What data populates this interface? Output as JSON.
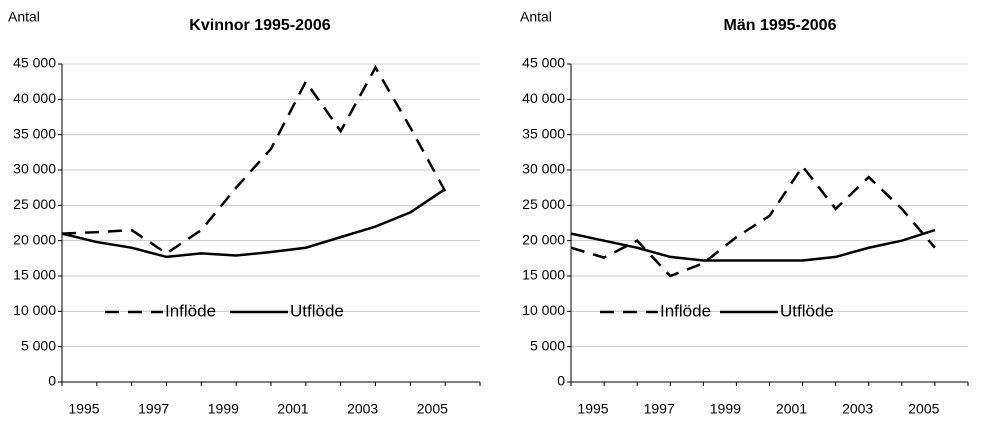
{
  "chart_data": [
    {
      "type": "line",
      "title": "Kvinnor 1995-2006",
      "y_label": "Antal",
      "categories": [
        "1995",
        null,
        "1997",
        null,
        "1999",
        null,
        "2001",
        null,
        "2003",
        null,
        "2005",
        null
      ],
      "series": [
        {
          "name": "Inflöde",
          "color": "#000000",
          "style": "dashed",
          "values": [
            21000,
            21200,
            21500,
            18200,
            21500,
            27500,
            33000,
            42500,
            35500,
            44500,
            36000,
            27000
          ]
        },
        {
          "name": "Utflöde",
          "color": "#000000",
          "style": "solid",
          "values": [
            21000,
            19800,
            19000,
            17700,
            18200,
            17900,
            18400,
            19000,
            20500,
            22000,
            24000,
            27300
          ]
        }
      ],
      "ylim": [
        0,
        45000
      ],
      "yticks": [
        0,
        {
          "value": 5000,
          "label": "5 000"
        },
        {
          "value": 10000,
          "label": "10 000"
        },
        {
          "value": 15000,
          "label": "15 000"
        },
        {
          "value": 20000,
          "label": "20 000"
        },
        {
          "value": 25000,
          "label": "25 000"
        },
        {
          "value": 30000,
          "label": "30 000"
        },
        {
          "value": 35000,
          "label": "35 000"
        },
        {
          "value": 40000,
          "label": "40 000"
        },
        {
          "value": 45000,
          "label": "45 000"
        }
      ],
      "grid": true
    },
    {
      "type": "line",
      "title": "Män 1995-2006",
      "y_label": "Antal",
      "categories": [
        "1995",
        null,
        "1997",
        null,
        "1999",
        null,
        "2001",
        null,
        "2003",
        null,
        "2005",
        null
      ],
      "series": [
        {
          "name": "Inflöde",
          "color": "#000000",
          "style": "dashed",
          "values": [
            19000,
            17600,
            20000,
            15000,
            16800,
            20500,
            23500,
            30500,
            24500,
            29000,
            24500,
            19000
          ]
        },
        {
          "name": "Utflöde",
          "color": "#000000",
          "style": "solid",
          "values": [
            21000,
            20000,
            19000,
            17700,
            17200,
            17200,
            17200,
            17200,
            17700,
            19000,
            20000,
            21500
          ]
        }
      ],
      "ylim": [
        0,
        45000
      ],
      "yticks": [
        0,
        {
          "value": 5000,
          "label": "5 000"
        },
        {
          "value": 10000,
          "label": "10 000"
        },
        {
          "value": 15000,
          "label": "15 000"
        },
        {
          "value": 20000,
          "label": "20 000"
        },
        {
          "value": 25000,
          "label": "25 000"
        },
        {
          "value": 30000,
          "label": "30 000"
        },
        {
          "value": 35000,
          "label": "35 000"
        },
        {
          "value": 40000,
          "label": "40 000"
        },
        {
          "value": 45000,
          "label": "45 000"
        }
      ],
      "grid": true
    }
  ]
}
